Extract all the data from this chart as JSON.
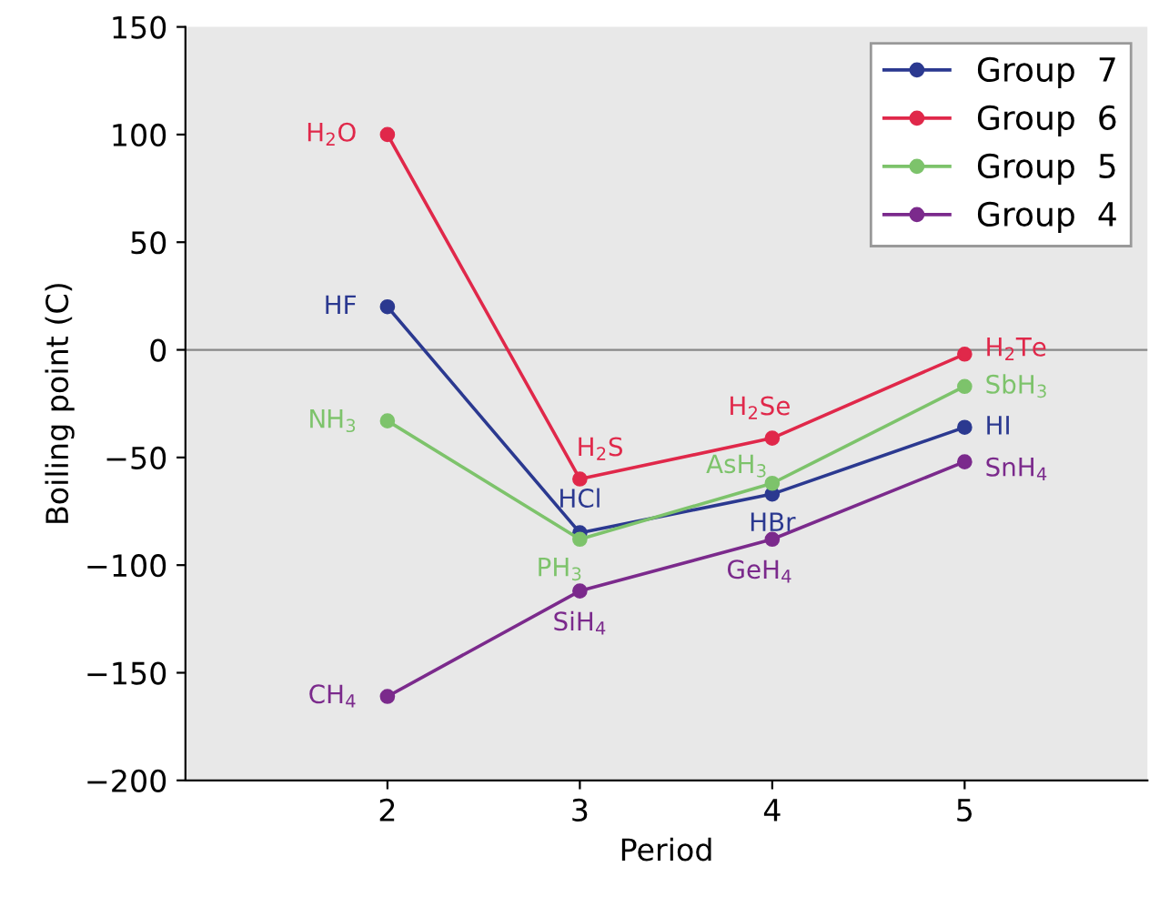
{
  "chart_data": {
    "type": "line",
    "xlabel": "Period",
    "ylabel": "Boiling point (C)",
    "x": [
      2,
      3,
      4,
      5
    ],
    "series": [
      {
        "name": "Group  7",
        "color": "#2b3990",
        "values": [
          20,
          -85,
          -67,
          -36
        ]
      },
      {
        "name": "Group  6",
        "color": "#e0284a",
        "values": [
          100,
          -60,
          -41,
          -2
        ]
      },
      {
        "name": "Group  5",
        "color": "#7dc36b",
        "values": [
          -33,
          -88,
          -62,
          -17
        ]
      },
      {
        "name": "Group  4",
        "color": "#7b2a8c",
        "values": [
          -161,
          -112,
          -88,
          -52
        ]
      }
    ],
    "xlim": [
      0.95,
      5.95
    ],
    "xticks": [
      2,
      3,
      4,
      5
    ],
    "ylim": [
      -200,
      150
    ],
    "yticks": [
      -200,
      -150,
      -100,
      -50,
      0,
      50,
      100,
      150
    ],
    "ref_lines": [
      {
        "axis": "y",
        "value": 0,
        "color": "#888888"
      }
    ],
    "annotations": [
      {
        "text": "HF",
        "x": 2,
        "y": 20
      },
      {
        "text": "HCl",
        "x": 3,
        "y": -85
      },
      {
        "text": "HBr",
        "x": 4,
        "y": -67
      },
      {
        "text": "HI",
        "x": 5,
        "y": -36
      },
      {
        "text": "H$_{2}$O",
        "x": 2,
        "y": 100
      },
      {
        "text": "H$_{2}$S",
        "x": 3,
        "y": -60
      },
      {
        "text": "H$_{2}$Se",
        "x": 4,
        "y": -41
      },
      {
        "text": "H$_{2}$Te",
        "x": 5,
        "y": -2
      },
      {
        "text": "NH$_{3}$",
        "x": 2,
        "y": -33
      },
      {
        "text": "PH$_{3}$",
        "x": 3,
        "y": -88
      },
      {
        "text": "AsH$_{3}$",
        "x": 4,
        "y": -62
      },
      {
        "text": "SbH$_{3}$",
        "x": 5,
        "y": -17
      },
      {
        "text": "CH$_{4}$",
        "x": 2,
        "y": -161
      },
      {
        "text": "SiH$_{4}$",
        "x": 3,
        "y": -112
      },
      {
        "text": "GeH$_{4}$",
        "x": 4,
        "y": -88
      },
      {
        "text": "SnH$_{4}$",
        "x": 5,
        "y": -52
      }
    ],
    "marker": "circle",
    "line_style": "solid",
    "grid": false,
    "legend": "top right"
  }
}
